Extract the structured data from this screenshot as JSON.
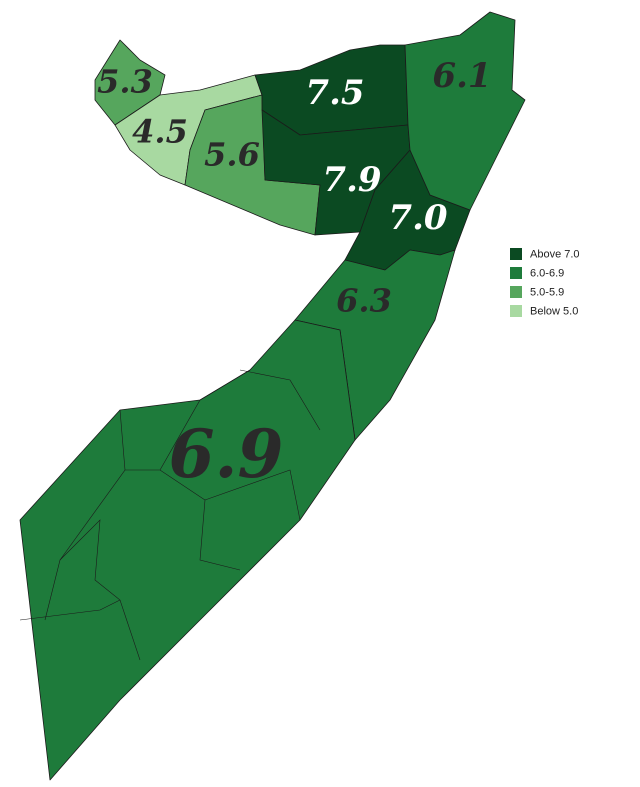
{
  "regions": [
    {
      "label": "5.3",
      "color": "#56a65d"
    },
    {
      "label": "4.5",
      "color": "#a8d9a1"
    },
    {
      "label": "5.6",
      "color": "#56a65d"
    },
    {
      "label": "7.5",
      "color": "#0b4a22"
    },
    {
      "label": "7.9",
      "color": "#0b4a22"
    },
    {
      "label": "7.0",
      "color": "#0b4a22"
    },
    {
      "label": "6.1",
      "color": "#1e7b3b"
    },
    {
      "label": "6.3",
      "color": "#1e7b3b"
    },
    {
      "label": "6.9",
      "color": "#1e7b3b"
    }
  ],
  "legend": {
    "items": [
      {
        "label": "Above 7.0",
        "color": "#0b4a22"
      },
      {
        "label": "6.0-6.9",
        "color": "#1e7b3b"
      },
      {
        "label": "5.0-5.9",
        "color": "#56a65d"
      },
      {
        "label": "Below 5.0",
        "color": "#a8d9a1"
      }
    ]
  }
}
